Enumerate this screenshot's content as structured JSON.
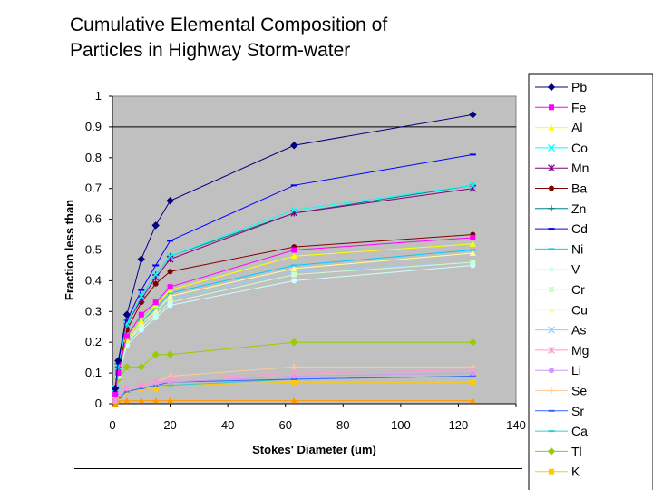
{
  "slide": {
    "title_line1": "Cumulative Elemental Composition of",
    "title_line2": "Particles in Highway Storm-water"
  },
  "chart_data": {
    "type": "line",
    "xlabel": "Stokes' Diameter (um)",
    "ylabel": "Fraction less than",
    "xlim": [
      0,
      140
    ],
    "ylim": [
      0,
      1
    ],
    "xticks": [
      0,
      20,
      40,
      60,
      80,
      100,
      120,
      140
    ],
    "yticks": [
      0,
      0.1,
      0.2,
      0.3,
      0.4,
      0.5,
      0.6,
      0.7,
      0.8,
      0.9,
      1
    ],
    "ytick_labels": [
      "0",
      "0.1",
      "0.2",
      "0.3",
      "0.4",
      "0.5",
      "0.6",
      "0.7",
      "0.8",
      "0.9",
      "1"
    ],
    "gridlines_y": [
      0.5,
      0.9
    ],
    "plot_background": "#c0c0c0",
    "legend_position": "right",
    "x": [
      1,
      2,
      5,
      10,
      15,
      20,
      63,
      125
    ],
    "series": [
      {
        "name": "Pb",
        "color": "#000080",
        "marker": "diamond",
        "values": [
          0.05,
          0.14,
          0.29,
          0.47,
          0.58,
          0.66,
          0.84,
          0.94
        ]
      },
      {
        "name": "Fe",
        "color": "#ff00ff",
        "marker": "square",
        "values": [
          0.03,
          0.1,
          0.22,
          0.29,
          0.33,
          0.38,
          0.5,
          0.54
        ]
      },
      {
        "name": "Al",
        "color": "#ffff00",
        "marker": "triangle",
        "values": [
          0.03,
          0.1,
          0.21,
          0.27,
          0.32,
          0.37,
          0.48,
          0.52
        ]
      },
      {
        "name": "Co",
        "color": "#00ffff",
        "marker": "x",
        "values": [
          0.05,
          0.12,
          0.26,
          0.35,
          0.42,
          0.48,
          0.63,
          0.71
        ]
      },
      {
        "name": "Mn",
        "color": "#800080",
        "marker": "star",
        "values": [
          0.05,
          0.12,
          0.26,
          0.34,
          0.41,
          0.47,
          0.62,
          0.7
        ]
      },
      {
        "name": "Ba",
        "color": "#800000",
        "marker": "circle",
        "values": [
          0.04,
          0.11,
          0.24,
          0.33,
          0.39,
          0.43,
          0.51,
          0.55
        ]
      },
      {
        "name": "Zn",
        "color": "#008080",
        "marker": "plus",
        "values": [
          0.05,
          0.12,
          0.26,
          0.35,
          0.42,
          0.48,
          0.62,
          0.71
        ]
      },
      {
        "name": "Cd",
        "color": "#0000ff",
        "marker": "dash",
        "values": [
          0.05,
          0.13,
          0.27,
          0.37,
          0.45,
          0.53,
          0.71,
          0.81
        ]
      },
      {
        "name": "Ni",
        "color": "#00ccff",
        "marker": "dash",
        "values": [
          0.03,
          0.1,
          0.21,
          0.27,
          0.31,
          0.36,
          0.45,
          0.5
        ]
      },
      {
        "name": "V",
        "color": "#ccffff",
        "marker": "circle",
        "values": [
          0.03,
          0.09,
          0.19,
          0.24,
          0.28,
          0.32,
          0.4,
          0.45
        ]
      },
      {
        "name": "Cr",
        "color": "#ccffcc",
        "marker": "square",
        "values": [
          0.03,
          0.09,
          0.2,
          0.25,
          0.29,
          0.33,
          0.42,
          0.46
        ]
      },
      {
        "name": "Cu",
        "color": "#ffff99",
        "marker": "triangle",
        "values": [
          0.03,
          0.1,
          0.2,
          0.26,
          0.3,
          0.35,
          0.44,
          0.49
        ]
      },
      {
        "name": "As",
        "color": "#99ccff",
        "marker": "x",
        "values": [
          0.03,
          0.1,
          0.2,
          0.26,
          0.3,
          0.34,
          0.43,
          0.46
        ]
      },
      {
        "name": "Mg",
        "color": "#ff99cc",
        "marker": "star",
        "values": [
          0.01,
          0.03,
          0.05,
          0.06,
          0.07,
          0.08,
          0.1,
          0.11
        ]
      },
      {
        "name": "Li",
        "color": "#cc99ff",
        "marker": "circle",
        "values": [
          0.01,
          0.03,
          0.05,
          0.06,
          0.07,
          0.07,
          0.09,
          0.1
        ]
      },
      {
        "name": "Se",
        "color": "#ffcc99",
        "marker": "plus",
        "values": [
          0.01,
          0.03,
          0.05,
          0.06,
          0.07,
          0.09,
          0.12,
          0.12
        ]
      },
      {
        "name": "Sr",
        "color": "#3366ff",
        "marker": "dash",
        "values": [
          0.01,
          0.02,
          0.04,
          0.05,
          0.06,
          0.07,
          0.08,
          0.09
        ]
      },
      {
        "name": "Ca",
        "color": "#33cccc",
        "marker": "dash",
        "values": [
          0.01,
          0.02,
          0.04,
          0.05,
          0.06,
          0.06,
          0.08,
          0.09
        ]
      },
      {
        "name": "Tl",
        "color": "#99cc00",
        "marker": "diamond",
        "values": [
          0.03,
          0.08,
          0.12,
          0.12,
          0.16,
          0.16,
          0.2,
          0.2
        ]
      },
      {
        "name": "K",
        "color": "#ffcc00",
        "marker": "square",
        "values": [
          0.01,
          0.02,
          0.04,
          0.05,
          0.05,
          0.06,
          0.07,
          0.07
        ]
      },
      {
        "name": "",
        "color": "#ff9900",
        "marker": "triangle",
        "values": [
          0.0,
          0.01,
          0.01,
          0.01,
          0.01,
          0.01,
          0.01,
          0.01
        ]
      }
    ]
  }
}
